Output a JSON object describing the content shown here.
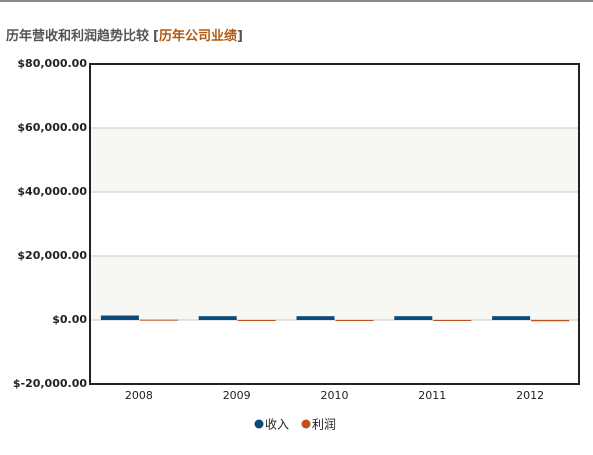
{
  "chart_data": {
    "type": "bar",
    "title": "历年营收和利润趋势比较",
    "title_open": "[",
    "title_link": "历年公司业绩",
    "title_close": "]",
    "categories": [
      "2008",
      "2009",
      "2010",
      "2011",
      "2012"
    ],
    "series": [
      {
        "name": "收入",
        "color": "#0d4a7a",
        "values": [
          1400,
          1200,
          1200,
          1200,
          1200
        ]
      },
      {
        "name": "利润",
        "color": "#c0501e",
        "values": [
          100,
          -100,
          -300,
          -100,
          -400
        ]
      }
    ],
    "ylim": [
      -20000,
      80000
    ],
    "yticks": [
      {
        "value": -20000,
        "label": "$-20,000.00"
      },
      {
        "value": 0,
        "label": "$0.00"
      },
      {
        "value": 20000,
        "label": "$20,000.00"
      },
      {
        "value": 40000,
        "label": "$40,000.00"
      },
      {
        "value": 60000,
        "label": "$60,000.00"
      },
      {
        "value": 80000,
        "label": "$80,000.00"
      }
    ],
    "grid": true,
    "legend": "bottom"
  }
}
